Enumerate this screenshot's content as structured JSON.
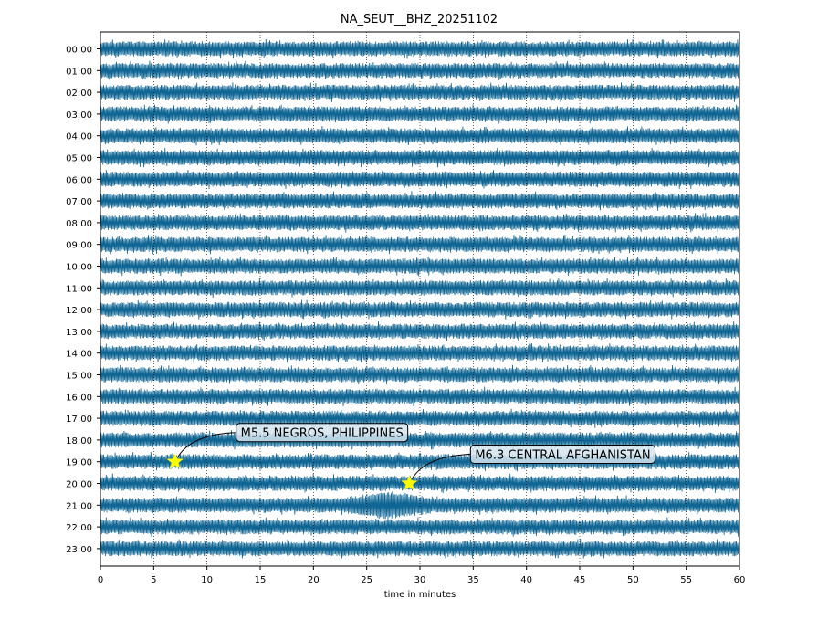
{
  "chart_data": {
    "type": "line",
    "title": "NA_SEUT__BHZ_20251102",
    "xlabel": "time in minutes",
    "ylabel": "",
    "xlim": [
      0,
      60
    ],
    "x_ticks": [
      0,
      5,
      10,
      15,
      20,
      25,
      30,
      35,
      40,
      45,
      50,
      55,
      60
    ],
    "x_tick_labels": [
      "0",
      "5",
      "10",
      "15",
      "20",
      "25",
      "30",
      "35",
      "40",
      "45",
      "50",
      "55",
      "60"
    ],
    "rows": [
      "00:00",
      "01:00",
      "02:00",
      "03:00",
      "04:00",
      "05:00",
      "06:00",
      "07:00",
      "08:00",
      "09:00",
      "10:00",
      "11:00",
      "12:00",
      "13:00",
      "14:00",
      "15:00",
      "16:00",
      "17:00",
      "18:00",
      "19:00",
      "20:00",
      "21:00",
      "22:00",
      "23:00"
    ],
    "trace_color": "#0f6593",
    "grid": "vertical dotted",
    "events": [
      {
        "label": "M5.5 NEGROS, PHILIPPINES",
        "row": "19:00",
        "minute": 7.0,
        "marker_color": "#ffff00"
      },
      {
        "label": "M6.3 CENTRAL AFGHANISTAN",
        "row": "20:00",
        "minute": 29.0,
        "marker_color": "#ffff00"
      }
    ],
    "signal_burst": {
      "row": "21:00",
      "start_minute": 22.5,
      "end_minute": 31.5
    }
  }
}
